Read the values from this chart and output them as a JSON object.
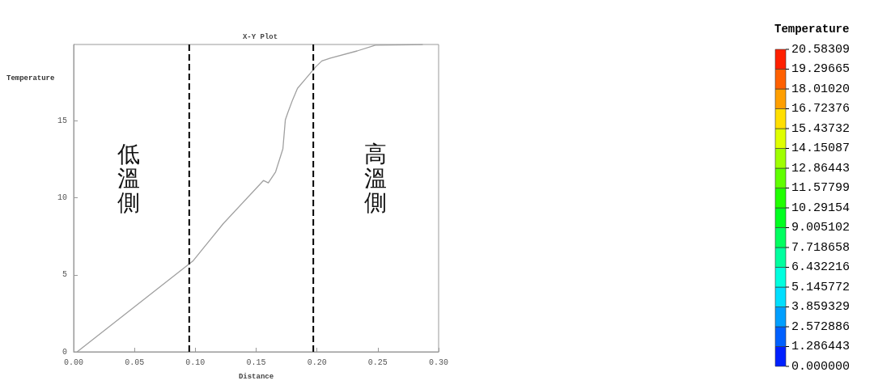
{
  "chart_data": {
    "type": "line",
    "title": "X-Y Plot",
    "xlabel": "Distance",
    "ylabel": "Temperature",
    "x": [
      0.0029,
      0.098,
      0.123,
      0.156,
      0.16,
      0.166,
      0.172,
      0.174,
      0.176,
      0.18,
      0.184,
      0.19,
      0.199,
      0.204,
      0.211,
      0.233,
      0.248,
      0.287
    ],
    "series": [
      {
        "color": "#a0a0a0",
        "values": [
          0,
          5.89,
          8.32,
          11.12,
          10.97,
          11.68,
          13.18,
          15.05,
          15.51,
          16.36,
          17.1,
          17.66,
          18.5,
          18.88,
          19.07,
          19.53,
          19.9,
          19.94
        ]
      }
    ],
    "xlim": [
      0,
      0.3
    ],
    "xticks": [
      {
        "value": 0,
        "label": "0.00"
      },
      {
        "value": 0.05,
        "label": "0.05"
      },
      {
        "value": 0.1,
        "label": "0.10"
      },
      {
        "value": 0.15,
        "label": "0.15"
      },
      {
        "value": 0.2,
        "label": "0.20"
      },
      {
        "value": 0.25,
        "label": "0.25"
      },
      {
        "value": 0.3,
        "label": "0.30"
      }
    ],
    "ylim": [
      0,
      19.95
    ],
    "yticks": [
      0,
      5,
      10,
      15
    ],
    "ref_lines": [
      {
        "axis": "x",
        "value": 0.095,
        "color": "#000000",
        "line_style": "dashed"
      },
      {
        "axis": "x",
        "value": 0.197,
        "color": "#000000",
        "line_style": "dashed"
      }
    ],
    "annotations": [
      "低溫側",
      "高溫側"
    ],
    "clabel": "Temperature",
    "clim": [
      0,
      20.58309
    ],
    "cticks": [
      {
        "value": 0,
        "label": "0.000000"
      },
      1.286443,
      2.572886,
      3.859329,
      5.145772,
      6.432216,
      7.718658,
      9.005102,
      10.29154,
      11.57799,
      12.86443,
      14.15087,
      15.43732,
      16.72376,
      {
        "value": 18.0102,
        "label": "18.01020"
      },
      19.29665,
      20.58309
    ],
    "grid": false,
    "marker": "none",
    "line_style": "solid"
  }
}
